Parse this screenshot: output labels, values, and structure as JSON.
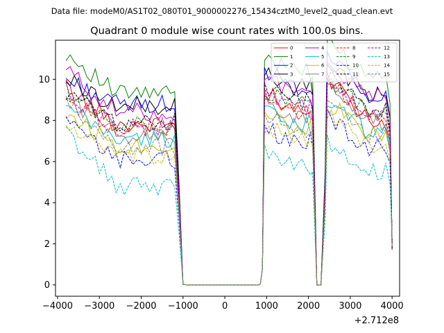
{
  "chart_data": {
    "type": "line",
    "suptitle": "Data file: modeM0/AS1T02_080T01_9000002276_15434cztM0_level2_quad_clean.evt",
    "title": "Quadrant 0 module wise count rates with 100.0s bins.",
    "xlabel": "",
    "ylabel": "",
    "x_offset_label": "+2.712e8",
    "xlim": [
      -4050,
      4180
    ],
    "ylim": [
      -0.55,
      11.9
    ],
    "xticks": [
      -4000,
      -3000,
      -2000,
      -1000,
      0,
      1000,
      2000,
      3000,
      4000
    ],
    "xtick_labels": [
      "−4000",
      "−3000",
      "−2000",
      "−1000",
      "0",
      "1000",
      "2000",
      "3000",
      "4000"
    ],
    "yticks": [
      0,
      2,
      4,
      6,
      8,
      10
    ],
    "ytick_labels": [
      "0",
      "2",
      "4",
      "6",
      "8",
      "10"
    ],
    "legend_position": "upper-right",
    "segments": [
      {
        "start": -3800,
        "end": -1150,
        "step": 100,
        "shape": "decay",
        "drop_to_zero_at": -1000
      },
      {
        "start": -1000,
        "end": 850,
        "step": 100,
        "shape": "zero"
      },
      {
        "start": 900,
        "end": 2050,
        "step": 100,
        "shape": "flat",
        "dip_at": 2150
      },
      {
        "start": 2150,
        "end": 2300,
        "step": 75,
        "shape": "zero"
      },
      {
        "start": 2450,
        "end": 3950,
        "step": 100,
        "shape": "decay",
        "drop_to_at_end": 1.7
      }
    ],
    "series": [
      {
        "name": "0",
        "color": "#ff0000",
        "style": "solid",
        "first": 9.6,
        "level": 7.8,
        "p2": 8.3,
        "p3": 9.5
      },
      {
        "name": "1",
        "color": "#008000",
        "style": "solid",
        "first": 11.3,
        "level": 9.3,
        "p2": 10.4,
        "p3": 11.1
      },
      {
        "name": "2",
        "color": "#0000ff",
        "style": "solid",
        "first": 10.0,
        "level": 8.8,
        "p2": 9.6,
        "p3": 10.5
      },
      {
        "name": "3",
        "color": "#000000",
        "style": "solid",
        "first": 10.0,
        "level": 8.7,
        "p2": 9.6,
        "p3": 10.2
      },
      {
        "name": "4",
        "color": "#bf00bf",
        "style": "solid",
        "first": 10.5,
        "level": 8.4,
        "p2": 9.5,
        "p3": 10.0
      },
      {
        "name": "5",
        "color": "#00bfbf",
        "style": "solid",
        "first": 8.6,
        "level": 7.1,
        "p2": 7.8,
        "p3": 8.5
      },
      {
        "name": "6",
        "color": "#bfbf00",
        "style": "solid",
        "first": 8.4,
        "level": 6.8,
        "p2": 7.6,
        "p3": 8.3
      },
      {
        "name": "7",
        "color": "#808080",
        "style": "solid",
        "first": 9.2,
        "level": 7.3,
        "p2": 8.2,
        "p3": 9.0
      },
      {
        "name": "8",
        "color": "#ff0000",
        "style": "dashed",
        "first": 9.0,
        "level": 7.6,
        "p2": 8.4,
        "p3": 9.4
      },
      {
        "name": "9",
        "color": "#008000",
        "style": "dashed",
        "first": 9.5,
        "level": 7.8,
        "p2": 8.8,
        "p3": 9.3
      },
      {
        "name": "10",
        "color": "#0000ff",
        "style": "dashed",
        "first": 7.9,
        "level": 6.1,
        "p2": 7.0,
        "p3": 7.6
      },
      {
        "name": "11",
        "color": "#000000",
        "style": "dashed",
        "first": 9.3,
        "level": 7.9,
        "p2": 8.9,
        "p3": 9.6
      },
      {
        "name": "12",
        "color": "#bf00bf",
        "style": "dashed",
        "first": 9.4,
        "level": 7.7,
        "p2": 8.6,
        "p3": 9.4
      },
      {
        "name": "13",
        "color": "#00bfbf",
        "style": "dashed",
        "first": 7.4,
        "level": 4.8,
        "p2": 5.8,
        "p3": 6.4
      },
      {
        "name": "14",
        "color": "#bfbf00",
        "style": "dashed",
        "first": 7.8,
        "level": 6.2,
        "p2": 7.1,
        "p3": 7.8
      },
      {
        "name": "15",
        "color": "#808080",
        "style": "dashed",
        "first": 8.8,
        "level": 6.7,
        "p2": 7.6,
        "p3": 8.4
      }
    ]
  }
}
